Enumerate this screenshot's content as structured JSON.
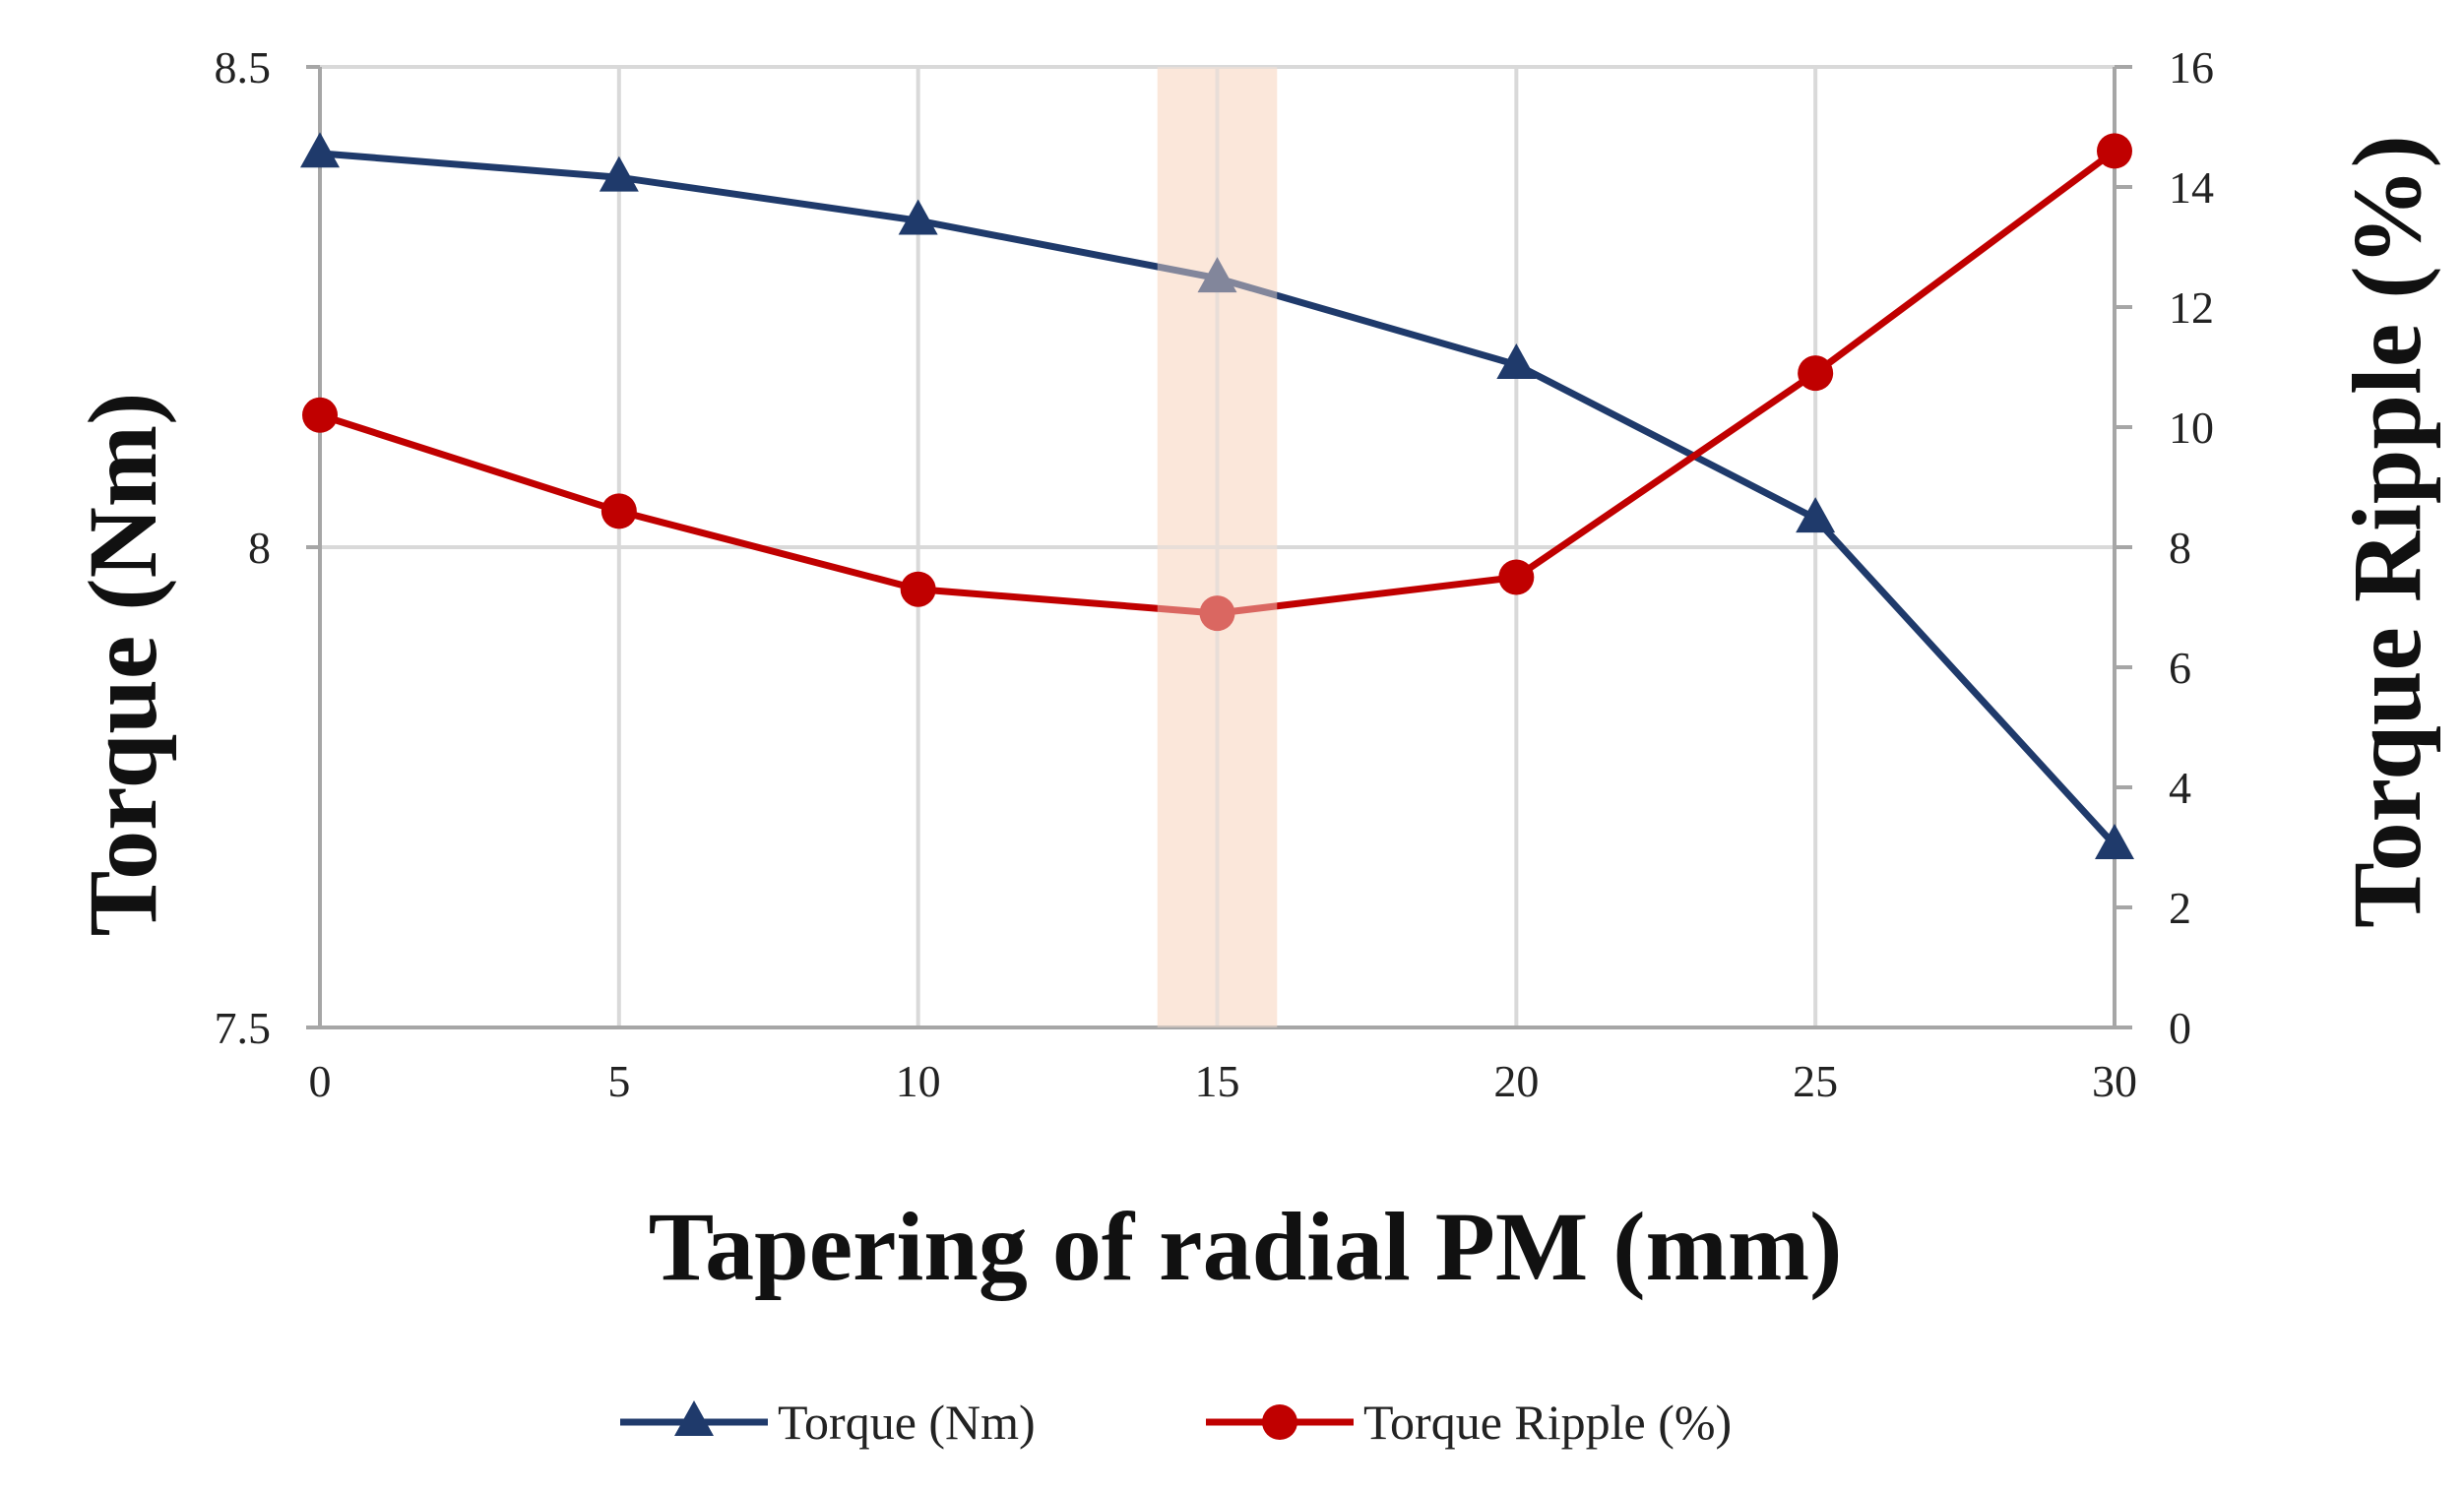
{
  "chart_data": {
    "type": "line",
    "x": [
      0,
      5,
      10,
      15,
      20,
      25,
      30
    ],
    "xlim": [
      0,
      30
    ],
    "xticks": [
      "0",
      "5",
      "10",
      "15",
      "20",
      "25",
      "30"
    ],
    "xlabel": "Tapering of radial PM (mm)",
    "ylabel_left": "Torque (Nm)",
    "ylabel_right": "Torque Ripple (%)",
    "ylim_left": [
      7.5,
      8.5
    ],
    "ylim_right": [
      0,
      16
    ],
    "yticks_left": [
      "7.5",
      "8",
      "8.5"
    ],
    "yticks_right": [
      "0",
      "2",
      "4",
      "6",
      "8",
      "10",
      "12",
      "14",
      "16"
    ],
    "yticks_left_values": [
      7.5,
      8,
      8.5
    ],
    "yticks_right_values": [
      0,
      2,
      4,
      6,
      8,
      10,
      12,
      14,
      16
    ],
    "highlight": {
      "x_center": 15,
      "x_from": 14,
      "x_to": 16,
      "color": "#FBE5D6"
    },
    "grid": true,
    "legend_position": "bottom-center",
    "series": [
      {
        "name": "Torque (Nm)",
        "axis": "left",
        "marker": "triangle",
        "color": "#1F3A6B",
        "values": [
          8.41,
          8.385,
          8.34,
          8.28,
          8.19,
          8.03,
          7.69
        ]
      },
      {
        "name": "Torque Ripple (%)",
        "axis": "right",
        "marker": "circle",
        "color": "#C00000",
        "values": [
          10.2,
          8.6,
          7.3,
          6.9,
          7.5,
          10.9,
          14.6
        ]
      }
    ]
  }
}
